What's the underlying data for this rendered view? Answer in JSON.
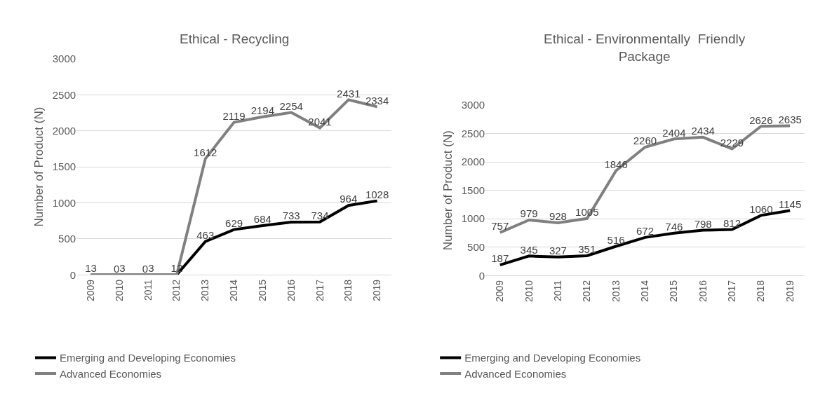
{
  "chart_data": [
    {
      "type": "line",
      "title": "Ethical - Recycling",
      "ylabel": "Number of Product (N)",
      "categories": [
        "2009",
        "2010",
        "2011",
        "2012",
        "2013",
        "2014",
        "2015",
        "2016",
        "2017",
        "2018",
        "2019"
      ],
      "series": [
        {
          "name": "Emerging and Developing Economies",
          "color": "#000000",
          "values": [
            1,
            0,
            0,
            1,
            463,
            629,
            684,
            733,
            734,
            964,
            1028
          ]
        },
        {
          "name": "Advanced Economies",
          "color": "#808080",
          "values": [
            3,
            3,
            3,
            2,
            1612,
            2119,
            2194,
            2254,
            2041,
            2431,
            2334
          ]
        }
      ],
      "ylim": [
        0,
        3000
      ],
      "yticks": [
        0,
        500,
        1000,
        1500,
        2000,
        2500,
        3000
      ],
      "grid": "y",
      "legend": "bottom",
      "data_labels": true,
      "marker": "none"
    },
    {
      "type": "line",
      "title": "Ethical - Environmentally  Friendly\nPackage",
      "ylabel": "Number of Product (N)",
      "categories": [
        "2009",
        "2010",
        "2011",
        "2012",
        "2013",
        "2014",
        "2015",
        "2016",
        "2017",
        "2018",
        "2019"
      ],
      "series": [
        {
          "name": "Emerging and Developing Economies",
          "color": "#000000",
          "values": [
            187,
            345,
            327,
            351,
            516,
            672,
            746,
            798,
            812,
            1060,
            1145
          ]
        },
        {
          "name": "Advanced Economies",
          "color": "#808080",
          "values": [
            757,
            979,
            928,
            1005,
            1846,
            2260,
            2404,
            2434,
            2229,
            2626,
            2635
          ]
        }
      ],
      "ylim": [
        0,
        3000
      ],
      "yticks": [
        0,
        500,
        1000,
        1500,
        2000,
        2500,
        3000
      ],
      "grid": "y",
      "legend": "bottom",
      "data_labels": true,
      "marker": "none"
    }
  ]
}
